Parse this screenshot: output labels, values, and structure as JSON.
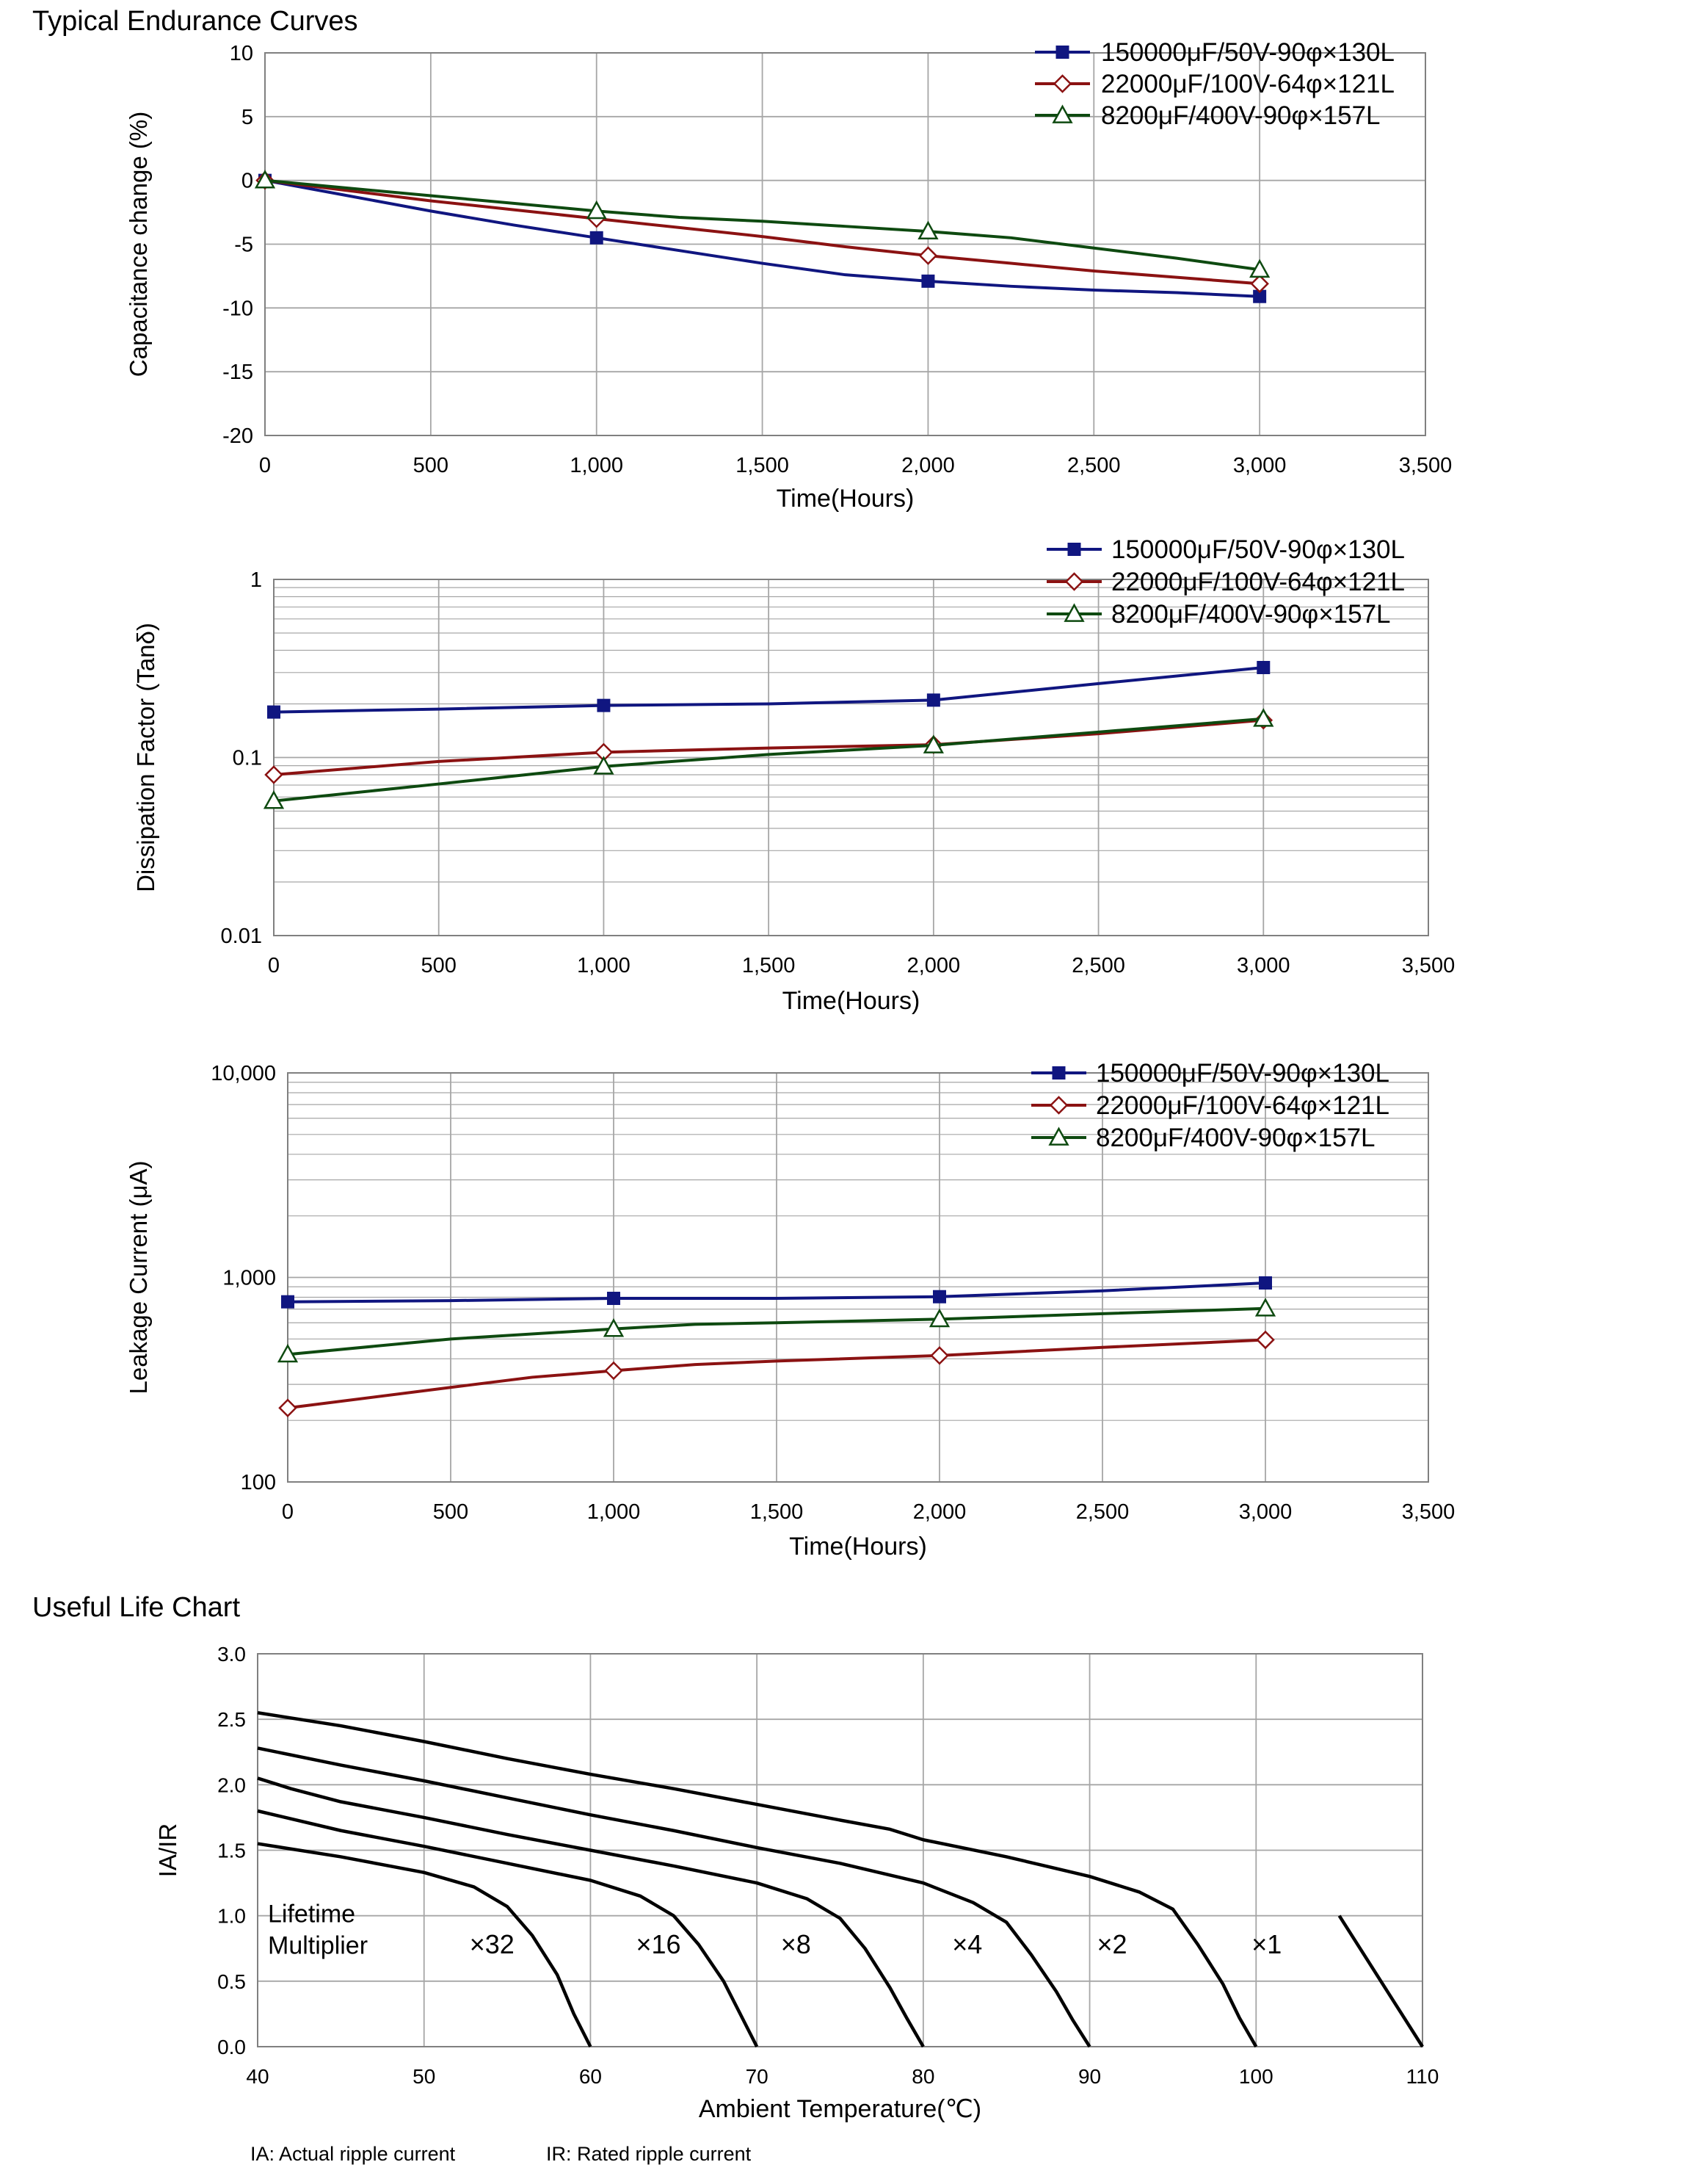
{
  "page": {
    "title": "Typical Endurance Curves",
    "life_title": "Useful Life Chart",
    "note_ia": "IA: Actual ripple current",
    "note_ir": "IR: Rated ripple current"
  },
  "colors": {
    "series1": "#101680",
    "series2": "#8b1212",
    "series3": "#0e4a10",
    "grid": "#a6a6a6",
    "axis": "#808080",
    "life_curve": "#000000"
  },
  "chart_data": [
    {
      "type": "line",
      "title": "",
      "xlabel": "Time(Hours)",
      "ylabel": "Capacitance change (%)",
      "xlim": [
        0,
        3500
      ],
      "ylim": [
        -20,
        10
      ],
      "yscale": "linear",
      "xticks": [
        0,
        500,
        1000,
        1500,
        2000,
        2500,
        3000,
        3500
      ],
      "xticklabels": [
        "0",
        "500",
        "1,000",
        "1,500",
        "2,000",
        "2,500",
        "3,000",
        "3,500"
      ],
      "yticks": [
        10,
        5,
        0,
        -5,
        -10,
        -15,
        -20
      ],
      "yticklabels": [
        "10",
        "5",
        "0",
        "-5",
        "-10",
        "-15",
        "-20"
      ],
      "grid": true,
      "legend": "top-right",
      "series": [
        {
          "name": "150000μF/50V-90φ×130L",
          "marker": "square",
          "x": [
            0,
            250,
            500,
            750,
            1000,
            1250,
            1500,
            1750,
            2000,
            2250,
            2500,
            2750,
            3000
          ],
          "y": [
            0,
            -1.2,
            -2.4,
            -3.5,
            -4.5,
            -5.5,
            -6.5,
            -7.4,
            -7.9,
            -8.3,
            -8.6,
            -8.8,
            -9.1
          ],
          "marker_x": [
            0,
            1000,
            2000,
            3000
          ],
          "marker_y": [
            0,
            -4.5,
            -7.9,
            -9.1
          ]
        },
        {
          "name": "22000μF/100V-64φ×121L",
          "marker": "diamond",
          "x": [
            0,
            250,
            500,
            750,
            1000,
            1250,
            1500,
            1750,
            2000,
            2250,
            2500,
            2750,
            3000
          ],
          "y": [
            0,
            -0.8,
            -1.6,
            -2.3,
            -3.0,
            -3.7,
            -4.4,
            -5.2,
            -5.9,
            -6.5,
            -7.1,
            -7.6,
            -8.1
          ],
          "marker_x": [
            0,
            1000,
            2000,
            3000
          ],
          "marker_y": [
            0,
            -3.0,
            -5.9,
            -8.1
          ]
        },
        {
          "name": "8200μF/400V-90φ×157L",
          "marker": "triangle",
          "x": [
            0,
            250,
            500,
            750,
            1000,
            1250,
            1500,
            1750,
            2000,
            2250,
            2500,
            2750,
            3000
          ],
          "y": [
            0,
            -0.6,
            -1.2,
            -1.8,
            -2.4,
            -2.9,
            -3.2,
            -3.6,
            -4.0,
            -4.5,
            -5.3,
            -6.1,
            -7.0
          ],
          "marker_x": [
            0,
            1000,
            2000,
            3000
          ],
          "marker_y": [
            0,
            -2.4,
            -4.0,
            -7.0
          ]
        }
      ]
    },
    {
      "type": "line",
      "title": "",
      "xlabel": "Time(Hours)",
      "ylabel": "Dissipation Factor (Tanδ)",
      "xlim": [
        0,
        3500
      ],
      "ylim": [
        0.01,
        1
      ],
      "yscale": "log",
      "xticks": [
        0,
        500,
        1000,
        1500,
        2000,
        2500,
        3000,
        3500
      ],
      "xticklabels": [
        "0",
        "500",
        "1,000",
        "1,500",
        "2,000",
        "2,500",
        "3,000",
        "3,500"
      ],
      "yticks": [
        1,
        0.1,
        0.01
      ],
      "yticklabels": [
        "1",
        "0.1",
        "0.01"
      ],
      "grid": true,
      "legend": "top-right",
      "series": [
        {
          "name": "150000μF/50V-90φ×130L",
          "marker": "square",
          "x": [
            0,
            500,
            1000,
            1500,
            2000,
            2500,
            3000
          ],
          "y": [
            0.18,
            0.187,
            0.196,
            0.2,
            0.21,
            0.26,
            0.32
          ],
          "marker_x": [
            0,
            1000,
            2000,
            3000
          ],
          "marker_y": [
            0.18,
            0.196,
            0.21,
            0.32
          ]
        },
        {
          "name": "22000μF/100V-64φ×121L",
          "marker": "diamond",
          "x": [
            0,
            500,
            1000,
            1500,
            2000,
            2500,
            3000
          ],
          "y": [
            0.08,
            0.095,
            0.107,
            0.113,
            0.118,
            0.136,
            0.162
          ],
          "marker_x": [
            0,
            1000,
            2000,
            3000
          ],
          "marker_y": [
            0.08,
            0.107,
            0.118,
            0.162
          ]
        },
        {
          "name": "8200μF/400V-90φ×157L",
          "marker": "triangle",
          "x": [
            0,
            500,
            1000,
            1500,
            2000,
            2500,
            3000
          ],
          "y": [
            0.057,
            0.071,
            0.089,
            0.104,
            0.117,
            0.139,
            0.165
          ],
          "marker_x": [
            0,
            1000,
            2000,
            3000
          ],
          "marker_y": [
            0.057,
            0.089,
            0.117,
            0.165
          ]
        }
      ]
    },
    {
      "type": "line",
      "title": "",
      "xlabel": "Time(Hours)",
      "ylabel": "Leakage Current (μA)",
      "xlim": [
        0,
        3500
      ],
      "ylim": [
        100,
        10000
      ],
      "yscale": "log",
      "xticks": [
        0,
        500,
        1000,
        1500,
        2000,
        2500,
        3000,
        3500
      ],
      "xticklabels": [
        "0",
        "500",
        "1,000",
        "1,500",
        "2,000",
        "2,500",
        "3,000",
        "3,500"
      ],
      "yticks": [
        10000,
        1000,
        100
      ],
      "yticklabels": [
        "10,000",
        "1,000",
        "100"
      ],
      "grid": true,
      "legend": "top-right",
      "series": [
        {
          "name": "150000μF/50V-90φ×130L",
          "marker": "square",
          "x": [
            0,
            500,
            1000,
            1500,
            2000,
            2500,
            3000
          ],
          "y": [
            760,
            770,
            790,
            790,
            805,
            860,
            940
          ],
          "marker_x": [
            0,
            1000,
            2000,
            3000
          ],
          "marker_y": [
            760,
            790,
            805,
            940
          ]
        },
        {
          "name": "22000μF/100V-64φ×121L",
          "marker": "diamond",
          "x": [
            0,
            500,
            750,
            1000,
            1250,
            1500,
            2000,
            2500,
            3000
          ],
          "y": [
            230,
            290,
            325,
            350,
            375,
            390,
            415,
            455,
            495
          ],
          "marker_x": [
            0,
            1000,
            2000,
            3000
          ],
          "marker_y": [
            230,
            350,
            415,
            495
          ]
        },
        {
          "name": "8200μF/400V-90φ×157L",
          "marker": "triangle",
          "x": [
            0,
            500,
            1000,
            1250,
            1500,
            2000,
            2500,
            3000
          ],
          "y": [
            420,
            500,
            560,
            590,
            600,
            625,
            665,
            705
          ],
          "marker_x": [
            0,
            1000,
            2000,
            3000
          ],
          "marker_y": [
            420,
            560,
            625,
            705
          ]
        }
      ]
    },
    {
      "type": "line",
      "title": "",
      "xlabel": "Ambient Temperature(℃)",
      "ylabel": "IA/IR",
      "xlim": [
        40,
        110
      ],
      "ylim": [
        0,
        3
      ],
      "yscale": "linear",
      "xticks": [
        40,
        50,
        60,
        70,
        80,
        90,
        100,
        110
      ],
      "xticklabels": [
        "40",
        "50",
        "60",
        "70",
        "80",
        "90",
        "100",
        "110"
      ],
      "yticks": [
        3.0,
        2.5,
        2.0,
        1.5,
        1.0,
        0.5,
        0.0
      ],
      "yticklabels": [
        "3.0",
        "2.5",
        "2.0",
        "1.5",
        "1.0",
        "0.5",
        "0.0"
      ],
      "grid": true,
      "annotation_title": "Lifetime\nMultiplier",
      "series": [
        {
          "name": "×32",
          "x": [
            40,
            45,
            50,
            53,
            55,
            56.5,
            58,
            59,
            60
          ],
          "y": [
            1.55,
            1.45,
            1.33,
            1.22,
            1.07,
            0.85,
            0.55,
            0.25,
            0
          ]
        },
        {
          "name": "×16",
          "x": [
            40,
            45,
            50,
            55,
            60,
            63,
            65,
            66.5,
            68,
            69,
            70
          ],
          "y": [
            1.8,
            1.65,
            1.53,
            1.4,
            1.27,
            1.15,
            1.0,
            0.78,
            0.5,
            0.25,
            0
          ]
        },
        {
          "name": "×8",
          "x": [
            40,
            42,
            45,
            50,
            55,
            60,
            65,
            70,
            73,
            75,
            76.5,
            78,
            79,
            80
          ],
          "y": [
            2.05,
            1.97,
            1.87,
            1.75,
            1.62,
            1.5,
            1.38,
            1.25,
            1.13,
            0.98,
            0.75,
            0.45,
            0.22,
            0
          ]
        },
        {
          "name": "×4",
          "x": [
            40,
            45,
            50,
            55,
            60,
            65,
            70,
            75,
            80,
            83,
            85,
            86.5,
            88,
            89,
            90
          ],
          "y": [
            2.28,
            2.15,
            2.03,
            1.9,
            1.77,
            1.65,
            1.52,
            1.4,
            1.25,
            1.1,
            0.95,
            0.7,
            0.42,
            0.2,
            0
          ]
        },
        {
          "name": "×2",
          "x": [
            40,
            45,
            50,
            55,
            60,
            65,
            70,
            75,
            78,
            80,
            85,
            90,
            93,
            95,
            96.5,
            98,
            99,
            100
          ],
          "y": [
            2.55,
            2.45,
            2.33,
            2.2,
            2.08,
            1.97,
            1.85,
            1.73,
            1.66,
            1.58,
            1.45,
            1.3,
            1.18,
            1.05,
            0.78,
            0.48,
            0.22,
            0
          ]
        },
        {
          "name": "×1",
          "x": [
            105,
            110
          ],
          "y": [
            1.0,
            0
          ]
        }
      ]
    }
  ]
}
